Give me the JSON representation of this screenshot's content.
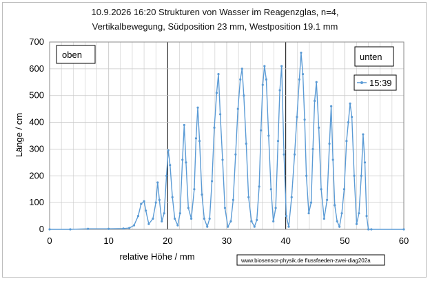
{
  "title_line1": "10.9.2026 16:20  Strukturen von Wasser im Reagenzglas, n=4,",
  "title_line2": "Vertikalbewegung, Südposition 23 mm, Westposition 19.1 mm",
  "box_left_label": "oben",
  "box_right_label": "unten",
  "footer": "www.biosensor-physik.de  flussfaeden-zwei-diag202a",
  "colors": {
    "series": "#5b9bd5",
    "grid": "#c8c8c8",
    "major_grid": "#000000"
  },
  "chart_data": {
    "type": "line",
    "xlabel": "relative Höhe /    mm",
    "ylabel": "Länge / cm",
    "xlim": [
      0,
      60
    ],
    "ylim": [
      0,
      700
    ],
    "xticks": [
      0,
      10,
      20,
      30,
      40,
      50,
      60
    ],
    "yticks": [
      0,
      100,
      200,
      300,
      400,
      500,
      600,
      700
    ],
    "major_x_gridlines": [
      20,
      40
    ],
    "grid": true,
    "legend": "top-right",
    "series": [
      {
        "name": "15:39",
        "x": [
          0,
          3.5,
          6.5,
          10,
          12.5,
          13.5,
          14.3,
          15,
          15.5,
          16,
          16.3,
          16.8,
          17.5,
          18,
          18.3,
          18.6,
          19,
          19.4,
          19.8,
          20.1,
          20.4,
          20.8,
          21.2,
          21.7,
          22.1,
          22.5,
          22.8,
          23.1,
          23.5,
          24,
          24.5,
          24.8,
          25.1,
          25.4,
          25.8,
          26.2,
          26.7,
          27.1,
          27.5,
          27.9,
          28.3,
          28.6,
          28.9,
          29.3,
          29.7,
          30.2,
          30.7,
          31.1,
          31.5,
          31.9,
          32.3,
          32.6,
          32.9,
          33.3,
          33.7,
          34.2,
          34.7,
          35.1,
          35.5,
          35.8,
          36.1,
          36.4,
          36.7,
          37.1,
          37.5,
          37.9,
          38.3,
          38.7,
          39,
          39.3,
          39.7,
          40.1,
          40.5,
          41,
          41.5,
          41.9,
          42.3,
          42.6,
          42.9,
          43.2,
          43.5,
          43.9,
          44.3,
          44.6,
          44.9,
          45.2,
          45.6,
          46,
          46.5,
          47,
          47.4,
          47.7,
          48,
          48.3,
          48.7,
          49.1,
          49.5,
          49.9,
          50.3,
          50.6,
          50.9,
          51.2,
          51.6,
          52,
          52.4,
          52.8,
          53.1,
          53.4,
          53.7,
          54,
          54.5,
          60
        ],
        "y": [
          0,
          0,
          2,
          2,
          3,
          5,
          15,
          50,
          95,
          105,
          70,
          20,
          40,
          100,
          175,
          110,
          30,
          60,
          200,
          295,
          240,
          120,
          40,
          15,
          60,
          260,
          390,
          250,
          80,
          40,
          150,
          340,
          455,
          330,
          130,
          40,
          10,
          40,
          180,
          380,
          510,
          580,
          430,
          260,
          80,
          10,
          30,
          110,
          280,
          450,
          560,
          600,
          500,
          320,
          120,
          30,
          10,
          35,
          160,
          370,
          540,
          610,
          560,
          350,
          150,
          30,
          80,
          330,
          520,
          610,
          280,
          50,
          10,
          120,
          280,
          420,
          560,
          660,
          580,
          410,
          200,
          60,
          100,
          300,
          480,
          550,
          380,
          150,
          40,
          110,
          320,
          460,
          260,
          90,
          30,
          10,
          60,
          150,
          330,
          400,
          470,
          420,
          200,
          20,
          60,
          200,
          355,
          250,
          50,
          0,
          0,
          0
        ]
      }
    ]
  }
}
